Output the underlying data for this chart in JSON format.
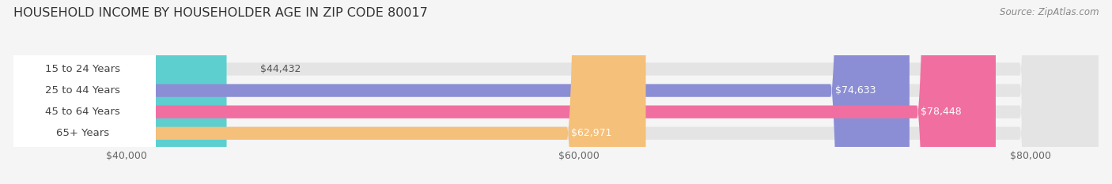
{
  "title": "HOUSEHOLD INCOME BY HOUSEHOLDER AGE IN ZIP CODE 80017",
  "source": "Source: ZipAtlas.com",
  "categories": [
    "15 to 24 Years",
    "25 to 44 Years",
    "45 to 64 Years",
    "65+ Years"
  ],
  "values": [
    44432,
    74633,
    78448,
    62971
  ],
  "bar_colors": [
    "#5ECFCF",
    "#8B8ED4",
    "#F06FA0",
    "#F5C07A"
  ],
  "bar_labels": [
    "$44,432",
    "$74,633",
    "$78,448",
    "$62,971"
  ],
  "x_min": 35000,
  "x_max": 83000,
  "x_ticks": [
    40000,
    60000,
    80000
  ],
  "x_tick_labels": [
    "$40,000",
    "$60,000",
    "$80,000"
  ],
  "background_color": "#f5f5f5",
  "bar_bg_color": "#e4e4e4",
  "title_fontsize": 11.5,
  "source_fontsize": 8.5,
  "label_fontsize": 9,
  "cat_fontsize": 9.5,
  "tick_fontsize": 9,
  "bar_height": 0.6
}
